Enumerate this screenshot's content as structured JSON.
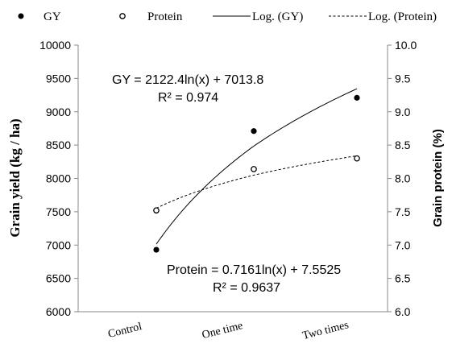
{
  "chart_data": {
    "type": "scatter",
    "categories": [
      "Control",
      "One time",
      "Two times"
    ],
    "x": [
      1,
      2,
      3
    ],
    "series": [
      {
        "name": "GY",
        "axis": "left",
        "marker": "filled-circle",
        "values": [
          6930,
          8710,
          9210
        ]
      },
      {
        "name": "Protein",
        "axis": "right",
        "marker": "open-circle",
        "values": [
          7.52,
          8.14,
          8.3
        ]
      }
    ],
    "trendlines": [
      {
        "name": "Log. (GY)",
        "series": "GY",
        "style": "solid",
        "a": 2122.4,
        "b": 7013.8
      },
      {
        "name": "Log. (Protein)",
        "series": "Protein",
        "style": "dashed",
        "a": 0.7161,
        "b": 7.5525
      }
    ],
    "annotations": {
      "gy_equation": "GY = 2122.4ln(x) + 7013.8",
      "gy_r2": "R² = 0.974",
      "protein_equation": "Protein = 0.7161ln(x) + 7.5525",
      "protein_r2": "R² = 0.9637"
    },
    "ylabel": "Grain yield (kg / ha)",
    "y2label": "Grain protein (%)",
    "ylim": [
      6000,
      10000
    ],
    "y2lim": [
      6.0,
      10.0
    ],
    "yticks": [
      "6000",
      "6500",
      "7000",
      "7500",
      "8000",
      "8500",
      "9000",
      "9500",
      "10000"
    ],
    "y2ticks": [
      "6.0",
      "6.5",
      "7.0",
      "7.5",
      "8.0",
      "8.5",
      "9.0",
      "9.5",
      "10.0"
    ],
    "legend": {
      "position": "top",
      "items": [
        "GY",
        "Protein",
        "Log. (GY)",
        "Log. (Protein)"
      ]
    },
    "grid": false,
    "colors": {
      "line": "#000000",
      "background": "#ffffff"
    }
  }
}
